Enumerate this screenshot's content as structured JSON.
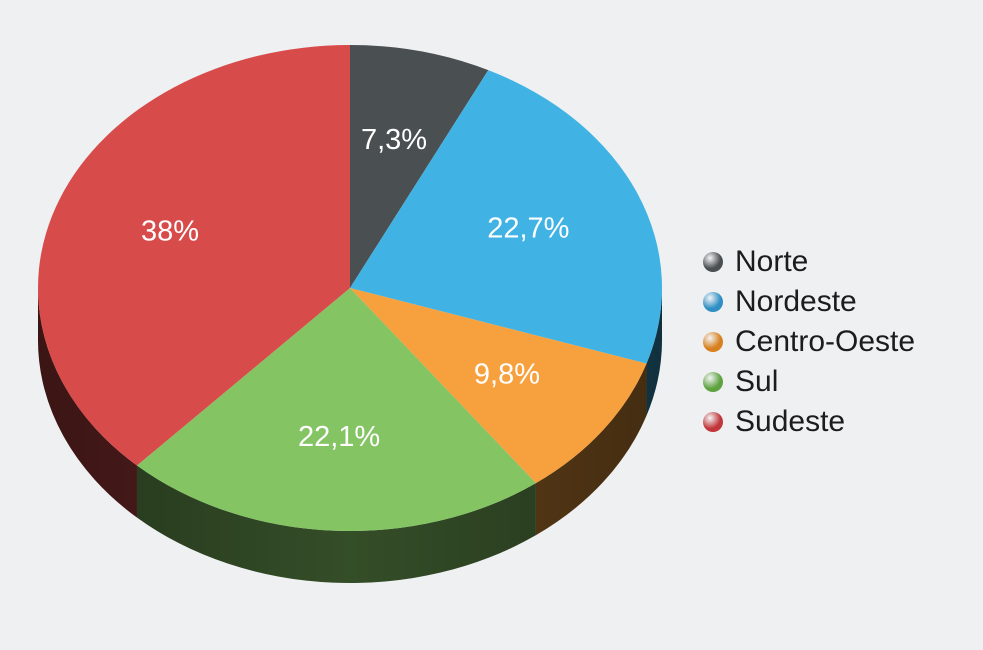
{
  "chart_data": {
    "type": "pie",
    "title": "",
    "categories": [
      "Norte",
      "Nordeste",
      "Centro-Oeste",
      "Sul",
      "Sudeste"
    ],
    "values": [
      7.3,
      22.7,
      9.8,
      22.1,
      38
    ],
    "value_labels": [
      "7,3%",
      "22,7%",
      "9,8%",
      "22,1%",
      "38%"
    ],
    "colors": [
      "#4a4f51",
      "#40b3e4",
      "#f7a13e",
      "#84c463",
      "#d84b4b"
    ],
    "legend_position": "right",
    "style": "3d"
  },
  "legend": {
    "items": [
      {
        "label": "Norte",
        "color": "#4a4f51"
      },
      {
        "label": "Nordeste",
        "color": "#2f8fc4"
      },
      {
        "label": "Centro-Oeste",
        "color": "#d7801e"
      },
      {
        "label": "Sul",
        "color": "#5fa340"
      },
      {
        "label": "Sudeste",
        "color": "#c0363a"
      }
    ]
  }
}
